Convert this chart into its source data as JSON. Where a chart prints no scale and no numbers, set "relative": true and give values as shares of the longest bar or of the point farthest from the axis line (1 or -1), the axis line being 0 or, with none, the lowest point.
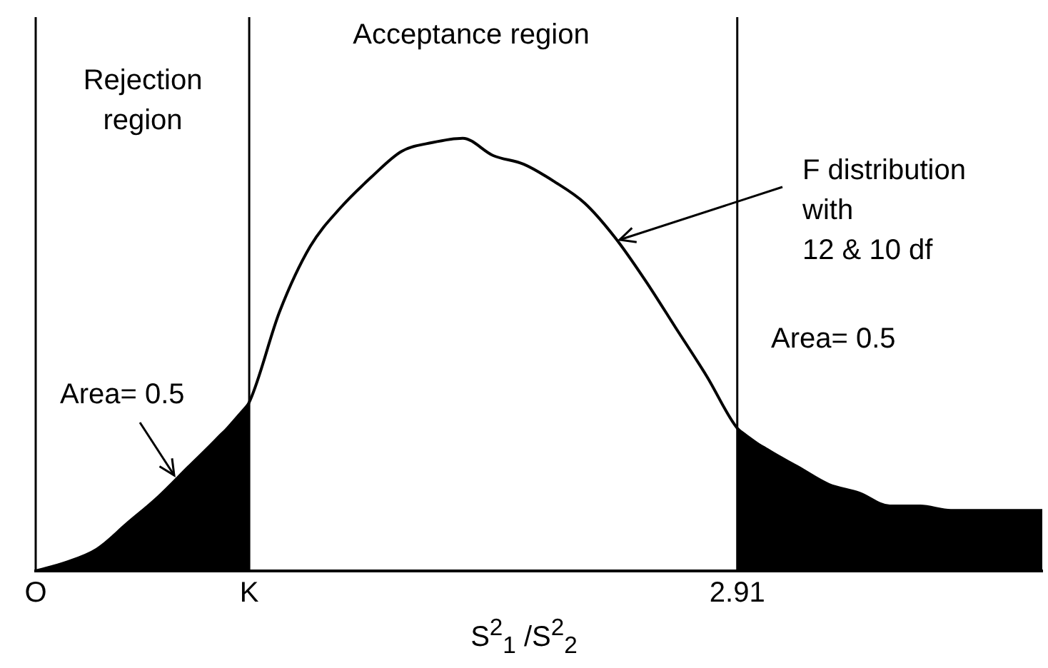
{
  "chart_data": {
    "type": "line",
    "relative": true,
    "xlabel": "S$^{2}$$_{1}$ /S$^{2}$$_{2}$",
    "categories": [
      "O",
      null,
      null,
      null,
      null,
      null,
      null,
      "K",
      null,
      null,
      null,
      null,
      null,
      null,
      null,
      null,
      null,
      null,
      null,
      null,
      null,
      null,
      null,
      "2.91",
      null,
      null,
      null,
      null,
      null,
      null,
      null,
      null,
      null,
      null
    ],
    "series": [
      {
        "color": "#000000",
        "values": [
          0,
          0.02,
          0.05,
          0.11,
          0.17,
          0.24,
          0.31,
          0.39,
          0.6,
          0.75,
          0.84,
          0.91,
          0.97,
          0.99,
          1,
          0.96,
          0.94,
          0.9,
          0.85,
          0.77,
          0.67,
          0.56,
          0.45,
          0.33,
          0.28,
          0.24,
          0.2,
          0.18,
          0.15,
          0.15,
          0.14,
          0.14,
          0.14,
          0.14
        ]
      },
      {
        "type": "area",
        "color": "#000000",
        "values": [
          0,
          0.02,
          0.05,
          0.11,
          0.17,
          0.24,
          0.31,
          0.39,
          null,
          null,
          null,
          null,
          null,
          null,
          null,
          null,
          null,
          null,
          null,
          null,
          null,
          null,
          null,
          null,
          null,
          null,
          null,
          null,
          null,
          null,
          null,
          null,
          null,
          null
        ]
      },
      {
        "type": "area",
        "color": "#000000",
        "values": [
          null,
          null,
          null,
          null,
          null,
          null,
          null,
          null,
          null,
          null,
          null,
          null,
          null,
          null,
          null,
          null,
          null,
          null,
          null,
          null,
          null,
          null,
          null,
          0.33,
          0.28,
          0.24,
          0.2,
          0.18,
          0.15,
          0.15,
          0.14,
          0.14,
          0.14,
          0.14
        ]
      }
    ],
    "ref_lines": [
      {
        "axis": "x",
        "value": "K"
      },
      {
        "axis": "x",
        "value": "2.91"
      }
    ],
    "annotations": [
      "Rejection\nregion",
      "Acceptance region",
      "F distribution\nwith\n12 & 10 df",
      "Area= 0.5",
      "Area= 0.5"
    ]
  }
}
